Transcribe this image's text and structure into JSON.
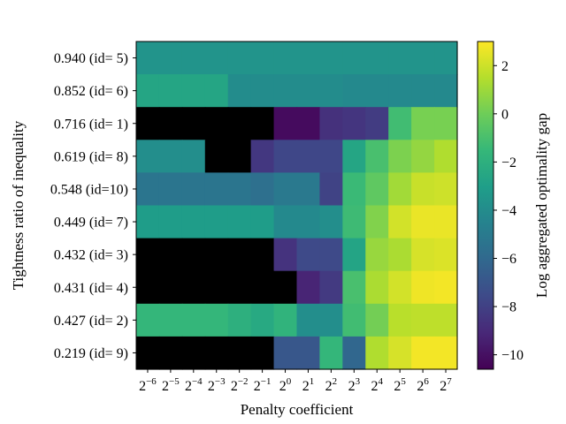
{
  "chart_data": {
    "type": "heatmap",
    "xlabel": "Penalty coefficient",
    "ylabel": "Tightness ratio of inequality",
    "colorbar_label": "Log aggregated optimality gap",
    "colormap": "viridis",
    "missing_color": "#000000",
    "clim": [
      -10.6,
      3.0
    ],
    "colorbar_ticks": [
      2,
      0,
      -2,
      -4,
      -6,
      -8,
      -10
    ],
    "colorbar_tick_labels": [
      "2",
      "0",
      "−2",
      "−4",
      "−6",
      "−8",
      "−10"
    ],
    "x_tick_base": "2",
    "x_exponents": [
      "−6",
      "−5",
      "−4",
      "−3",
      "−2",
      "−1",
      "0",
      "1",
      "2",
      "3",
      "4",
      "5",
      "6",
      "7"
    ],
    "y_categories": [
      "0.940 (id= 5)",
      "0.852 (id= 6)",
      "0.716 (id= 1)",
      "0.619 (id= 8)",
      "0.548 (id=10)",
      "0.449 (id= 7)",
      "0.432 (id= 3)",
      "0.431 (id= 4)",
      "0.427 (id= 2)",
      "0.219 (id= 9)"
    ],
    "values": [
      [
        -3.6,
        -3.6,
        -3.6,
        -3.6,
        -3.6,
        -3.6,
        -3.6,
        -3.6,
        -3.6,
        -3.6,
        -3.6,
        -3.6,
        -3.6,
        -3.6
      ],
      [
        -2.6,
        -2.6,
        -2.6,
        -2.6,
        -4.0,
        -4.0,
        -4.0,
        -4.0,
        -4.0,
        -4.2,
        -4.2,
        -4.2,
        -4.2,
        -4.2
      ],
      [
        null,
        null,
        null,
        null,
        null,
        null,
        -10.2,
        -10.2,
        -8.7,
        -8.5,
        -8.2,
        -1.2,
        0.2,
        0.2
      ],
      [
        -3.9,
        -3.9,
        -3.9,
        null,
        null,
        -8.4,
        -7.7,
        -7.7,
        -7.7,
        -2.6,
        -1.0,
        0.3,
        0.8,
        1.4
      ],
      [
        -5.3,
        -5.3,
        -5.3,
        -5.3,
        -5.3,
        -5.6,
        -5.1,
        -5.1,
        -7.9,
        -1.4,
        -0.4,
        1.1,
        1.9,
        2.0
      ],
      [
        -3.1,
        -3.1,
        -3.1,
        -3.1,
        -3.1,
        -3.1,
        -4.2,
        -4.2,
        -3.9,
        -1.3,
        0.4,
        2.1,
        2.6,
        2.6
      ],
      [
        null,
        null,
        null,
        null,
        null,
        null,
        -8.6,
        -7.6,
        -7.6,
        -2.7,
        0.9,
        1.3,
        2.2,
        2.3
      ],
      [
        null,
        null,
        null,
        null,
        null,
        null,
        null,
        -9.2,
        -8.3,
        -1.0,
        1.3,
        2.1,
        2.7,
        2.8
      ],
      [
        -1.6,
        -1.6,
        -1.6,
        -1.6,
        -2.0,
        -2.4,
        -1.8,
        -3.9,
        -3.9,
        -1.2,
        0.1,
        1.6,
        1.7,
        1.7
      ],
      [
        null,
        null,
        null,
        null,
        null,
        null,
        -6.9,
        -6.9,
        -1.6,
        -6.1,
        1.4,
        2.2,
        2.8,
        2.8
      ]
    ]
  }
}
